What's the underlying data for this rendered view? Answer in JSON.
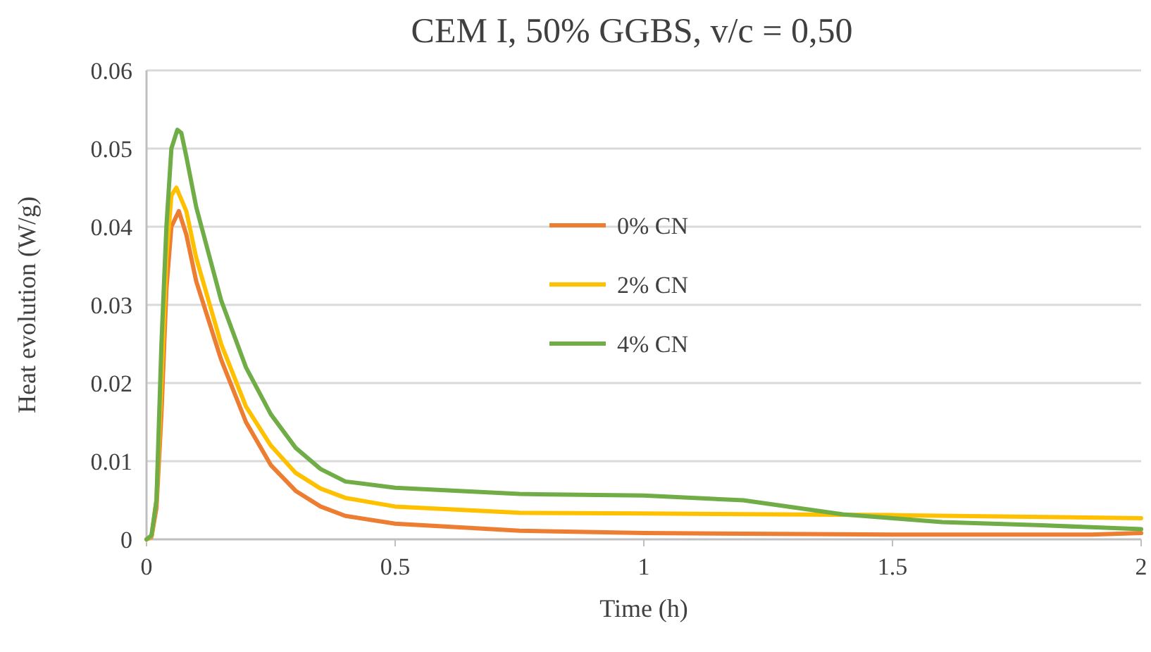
{
  "chart_data": {
    "type": "line",
    "title": "CEM I, 50% GGBS, v/c = 0,50",
    "xlabel": "Time (h)",
    "ylabel": "Heat evolution (W/g)",
    "xlim": [
      0,
      2
    ],
    "xticks": [
      0,
      0.5,
      1,
      1.5,
      2
    ],
    "ylim": [
      0,
      0.06
    ],
    "yticks": [
      0,
      0.01,
      0.02,
      0.03,
      0.04,
      0.05,
      0.06
    ],
    "grid": "y",
    "legend": "top",
    "marker": "none",
    "line_style": "solid",
    "series": [
      {
        "name": "0% CN",
        "color": "#ed7d31",
        "x": [
          0,
          0.01,
          0.02,
          0.03,
          0.04,
          0.05,
          0.065,
          0.08,
          0.1,
          0.15,
          0.2,
          0.25,
          0.3,
          0.35,
          0.4,
          0.5,
          0.75,
          1.0,
          1.5,
          1.9,
          2.0
        ],
        "values": [
          0,
          0.0003,
          0.004,
          0.016,
          0.032,
          0.04,
          0.042,
          0.039,
          0.033,
          0.023,
          0.015,
          0.0095,
          0.0062,
          0.0042,
          0.003,
          0.002,
          0.0011,
          0.0008,
          0.0006,
          0.0006,
          0.0008
        ]
      },
      {
        "name": "2% CN",
        "color": "#ffc000",
        "x": [
          0,
          0.01,
          0.02,
          0.03,
          0.04,
          0.05,
          0.06,
          0.08,
          0.1,
          0.15,
          0.2,
          0.25,
          0.3,
          0.35,
          0.4,
          0.5,
          0.75,
          1.0,
          1.5,
          2.0
        ],
        "values": [
          0,
          0.0004,
          0.005,
          0.02,
          0.036,
          0.044,
          0.045,
          0.042,
          0.036,
          0.025,
          0.017,
          0.012,
          0.0085,
          0.0065,
          0.0053,
          0.0042,
          0.0034,
          0.0033,
          0.0031,
          0.0027
        ]
      },
      {
        "name": "4% CN",
        "color": "#70ad47",
        "x": [
          0,
          0.01,
          0.02,
          0.03,
          0.04,
          0.05,
          0.062,
          0.07,
          0.08,
          0.1,
          0.15,
          0.2,
          0.25,
          0.3,
          0.35,
          0.4,
          0.5,
          0.75,
          1.0,
          1.2,
          1.3,
          1.4,
          1.5,
          1.6,
          1.8,
          2.0
        ],
        "values": [
          0,
          0.0005,
          0.005,
          0.025,
          0.04,
          0.05,
          0.0524,
          0.052,
          0.049,
          0.0425,
          0.0306,
          0.022,
          0.016,
          0.0117,
          0.009,
          0.0074,
          0.0066,
          0.0058,
          0.0056,
          0.005,
          0.0041,
          0.0032,
          0.0027,
          0.0022,
          0.0018,
          0.0013
        ]
      }
    ]
  }
}
